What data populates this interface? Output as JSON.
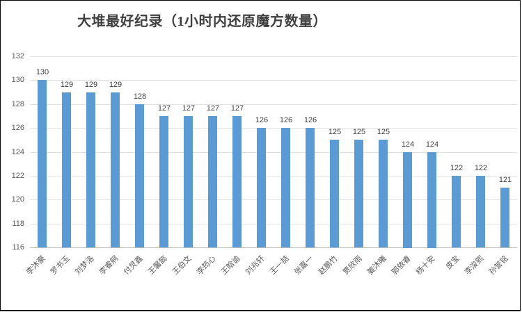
{
  "colors": {
    "bar": "#5B9BD5",
    "gridline": "#E2E2E2",
    "baseline": "#BFBFBF",
    "title_text": "#3F3F3F",
    "axis_text": "#595959",
    "value_text": "#404040",
    "frame_border": "#000000"
  },
  "chart_data": {
    "type": "bar",
    "title": "大堆最好纪录（1小时内还原魔方数量）",
    "categories": [
      "李沐豪",
      "罗书玉",
      "刘梦洛",
      "李睿舸",
      "付炅鑫",
      "王馨懿",
      "王伯文",
      "李筠心",
      "王晗谕",
      "刘兆轩",
      "王一喆",
      "张嘉一",
      "赵鹏竹",
      "贾欣雨",
      "姜沐曦",
      "郭依睿",
      "杨十安",
      "皮宝",
      "李浚熙",
      "孙誉铭"
    ],
    "values": [
      130,
      129,
      129,
      129,
      128,
      127,
      127,
      127,
      127,
      126,
      126,
      126,
      125,
      125,
      125,
      124,
      124,
      122,
      122,
      121
    ],
    "xlabel": "",
    "ylabel": "",
    "ylim": [
      116,
      132
    ],
    "yticks": [
      116,
      118,
      120,
      122,
      124,
      126,
      128,
      130,
      132
    ],
    "grid": true,
    "legend": false,
    "data_labels": true,
    "bar_orientation": "vertical"
  }
}
